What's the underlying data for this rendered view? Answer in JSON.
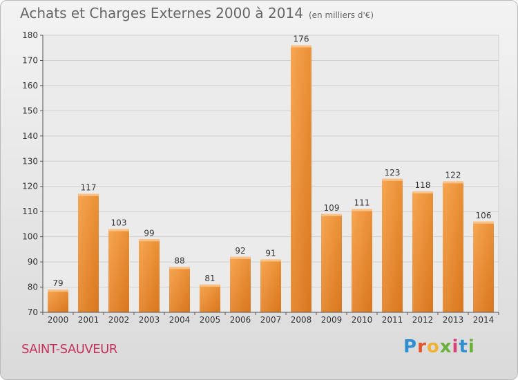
{
  "chart_data": {
    "type": "bar",
    "title": "Achats et Charges Externes 2000 à 2014",
    "subtitle": "(en milliers d'€)",
    "categories": [
      "2000",
      "2001",
      "2002",
      "2003",
      "2004",
      "2005",
      "2006",
      "2007",
      "2008",
      "2009",
      "2010",
      "2011",
      "2012",
      "2013",
      "2014"
    ],
    "values": [
      79,
      117,
      103,
      99,
      88,
      81,
      92,
      91,
      176,
      109,
      111,
      123,
      118,
      122,
      106
    ],
    "ylim": [
      70,
      180
    ],
    "yticks": [
      70,
      80,
      90,
      100,
      110,
      120,
      130,
      140,
      150,
      160,
      170,
      180
    ],
    "grid": true,
    "bar_color": "#f0902f"
  },
  "footer": {
    "city": "SAINT-SAUVEUR"
  },
  "logo": {
    "text": "Proxiti",
    "letters": [
      "P",
      "r",
      "o",
      "x",
      "i",
      "t",
      "i"
    ],
    "colors": [
      "#2f8fd0",
      "#e2542a",
      "#f2b134",
      "#6ab13b",
      "#d6417a",
      "#2f8fd0",
      "#6ab13b"
    ]
  }
}
